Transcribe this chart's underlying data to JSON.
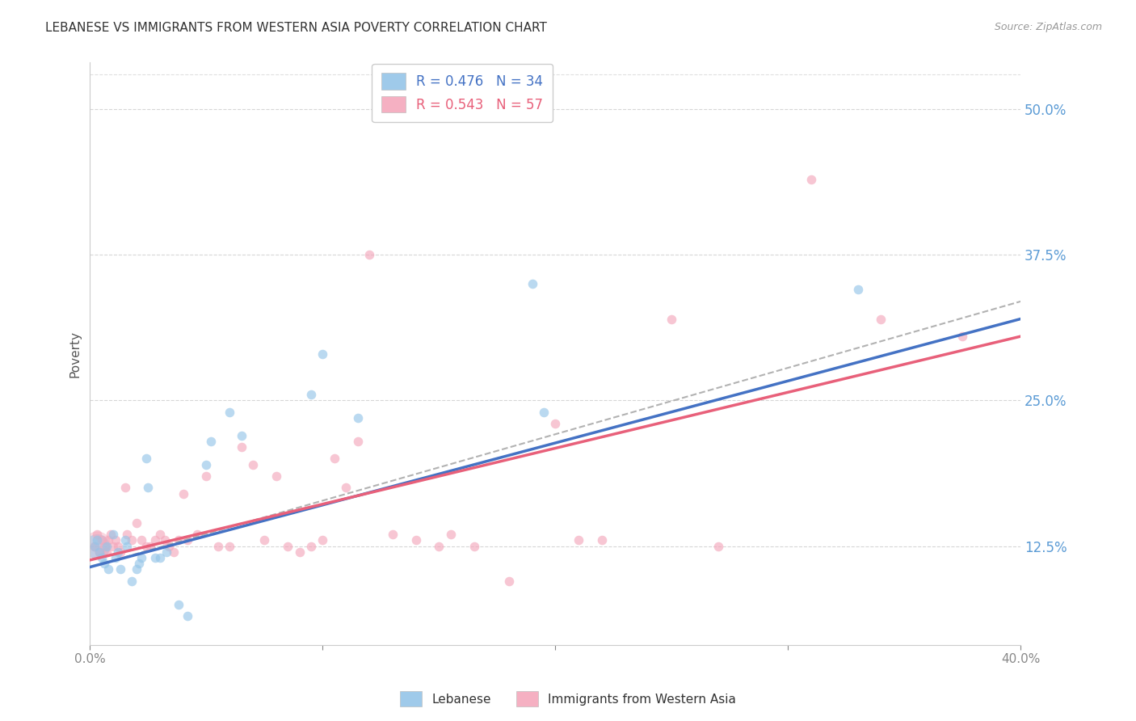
{
  "title": "LEBANESE VS IMMIGRANTS FROM WESTERN ASIA POVERTY CORRELATION CHART",
  "source": "Source: ZipAtlas.com",
  "ylabel": "Poverty",
  "ytick_values": [
    0.125,
    0.25,
    0.375,
    0.5
  ],
  "xlim": [
    0.0,
    0.4
  ],
  "ylim": [
    0.04,
    0.54
  ],
  "legend_label1": "Lebanese",
  "legend_label2": "Immigrants from Western Asia",
  "R1": 0.476,
  "N1": 34,
  "R2": 0.543,
  "N2": 57,
  "color_blue": "#95C5E8",
  "color_pink": "#F4A8BC",
  "color_blue_line": "#4472C4",
  "color_pink_line": "#E8607A",
  "color_blue_text": "#4472C4",
  "color_pink_text": "#E8607A",
  "title_color": "#333333",
  "axis_color": "#cccccc",
  "grid_color": "#cccccc",
  "ytick_color": "#5B9BD5",
  "background": "#ffffff",
  "scatter_alpha": 0.65,
  "scatter_size": 70,
  "blue_x": [
    0.002,
    0.003,
    0.004,
    0.005,
    0.006,
    0.007,
    0.008,
    0.01,
    0.011,
    0.012,
    0.013,
    0.015,
    0.016,
    0.018,
    0.02,
    0.021,
    0.022,
    0.024,
    0.025,
    0.028,
    0.03,
    0.033,
    0.038,
    0.042,
    0.05,
    0.052,
    0.06,
    0.065,
    0.095,
    0.1,
    0.115,
    0.19,
    0.195,
    0.33
  ],
  "blue_y": [
    0.125,
    0.13,
    0.12,
    0.115,
    0.11,
    0.125,
    0.105,
    0.135,
    0.115,
    0.12,
    0.105,
    0.13,
    0.125,
    0.095,
    0.105,
    0.11,
    0.115,
    0.2,
    0.175,
    0.115,
    0.115,
    0.12,
    0.075,
    0.065,
    0.195,
    0.215,
    0.24,
    0.22,
    0.255,
    0.29,
    0.235,
    0.35,
    0.24,
    0.345
  ],
  "pink_x": [
    0.002,
    0.003,
    0.004,
    0.005,
    0.006,
    0.007,
    0.008,
    0.009,
    0.01,
    0.011,
    0.012,
    0.013,
    0.015,
    0.016,
    0.018,
    0.02,
    0.022,
    0.024,
    0.026,
    0.028,
    0.03,
    0.032,
    0.034,
    0.036,
    0.038,
    0.04,
    0.042,
    0.046,
    0.05,
    0.055,
    0.06,
    0.065,
    0.07,
    0.075,
    0.08,
    0.085,
    0.09,
    0.095,
    0.1,
    0.105,
    0.11,
    0.115,
    0.12,
    0.13,
    0.14,
    0.15,
    0.155,
    0.165,
    0.18,
    0.2,
    0.21,
    0.22,
    0.25,
    0.27,
    0.31,
    0.34,
    0.375
  ],
  "pink_y": [
    0.125,
    0.135,
    0.12,
    0.13,
    0.125,
    0.12,
    0.13,
    0.135,
    0.125,
    0.13,
    0.125,
    0.12,
    0.175,
    0.135,
    0.13,
    0.145,
    0.13,
    0.125,
    0.125,
    0.13,
    0.135,
    0.13,
    0.125,
    0.12,
    0.13,
    0.17,
    0.13,
    0.135,
    0.185,
    0.125,
    0.125,
    0.21,
    0.195,
    0.13,
    0.185,
    0.125,
    0.12,
    0.125,
    0.13,
    0.2,
    0.175,
    0.215,
    0.375,
    0.135,
    0.13,
    0.125,
    0.135,
    0.125,
    0.095,
    0.23,
    0.13,
    0.13,
    0.32,
    0.125,
    0.44,
    0.32,
    0.305
  ],
  "line_blue_start_y": 0.107,
  "line_blue_end_y": 0.32,
  "line_pink_start_y": 0.113,
  "line_pink_end_y": 0.305,
  "line_dash_start_y": 0.107,
  "line_dash_end_y": 0.335
}
